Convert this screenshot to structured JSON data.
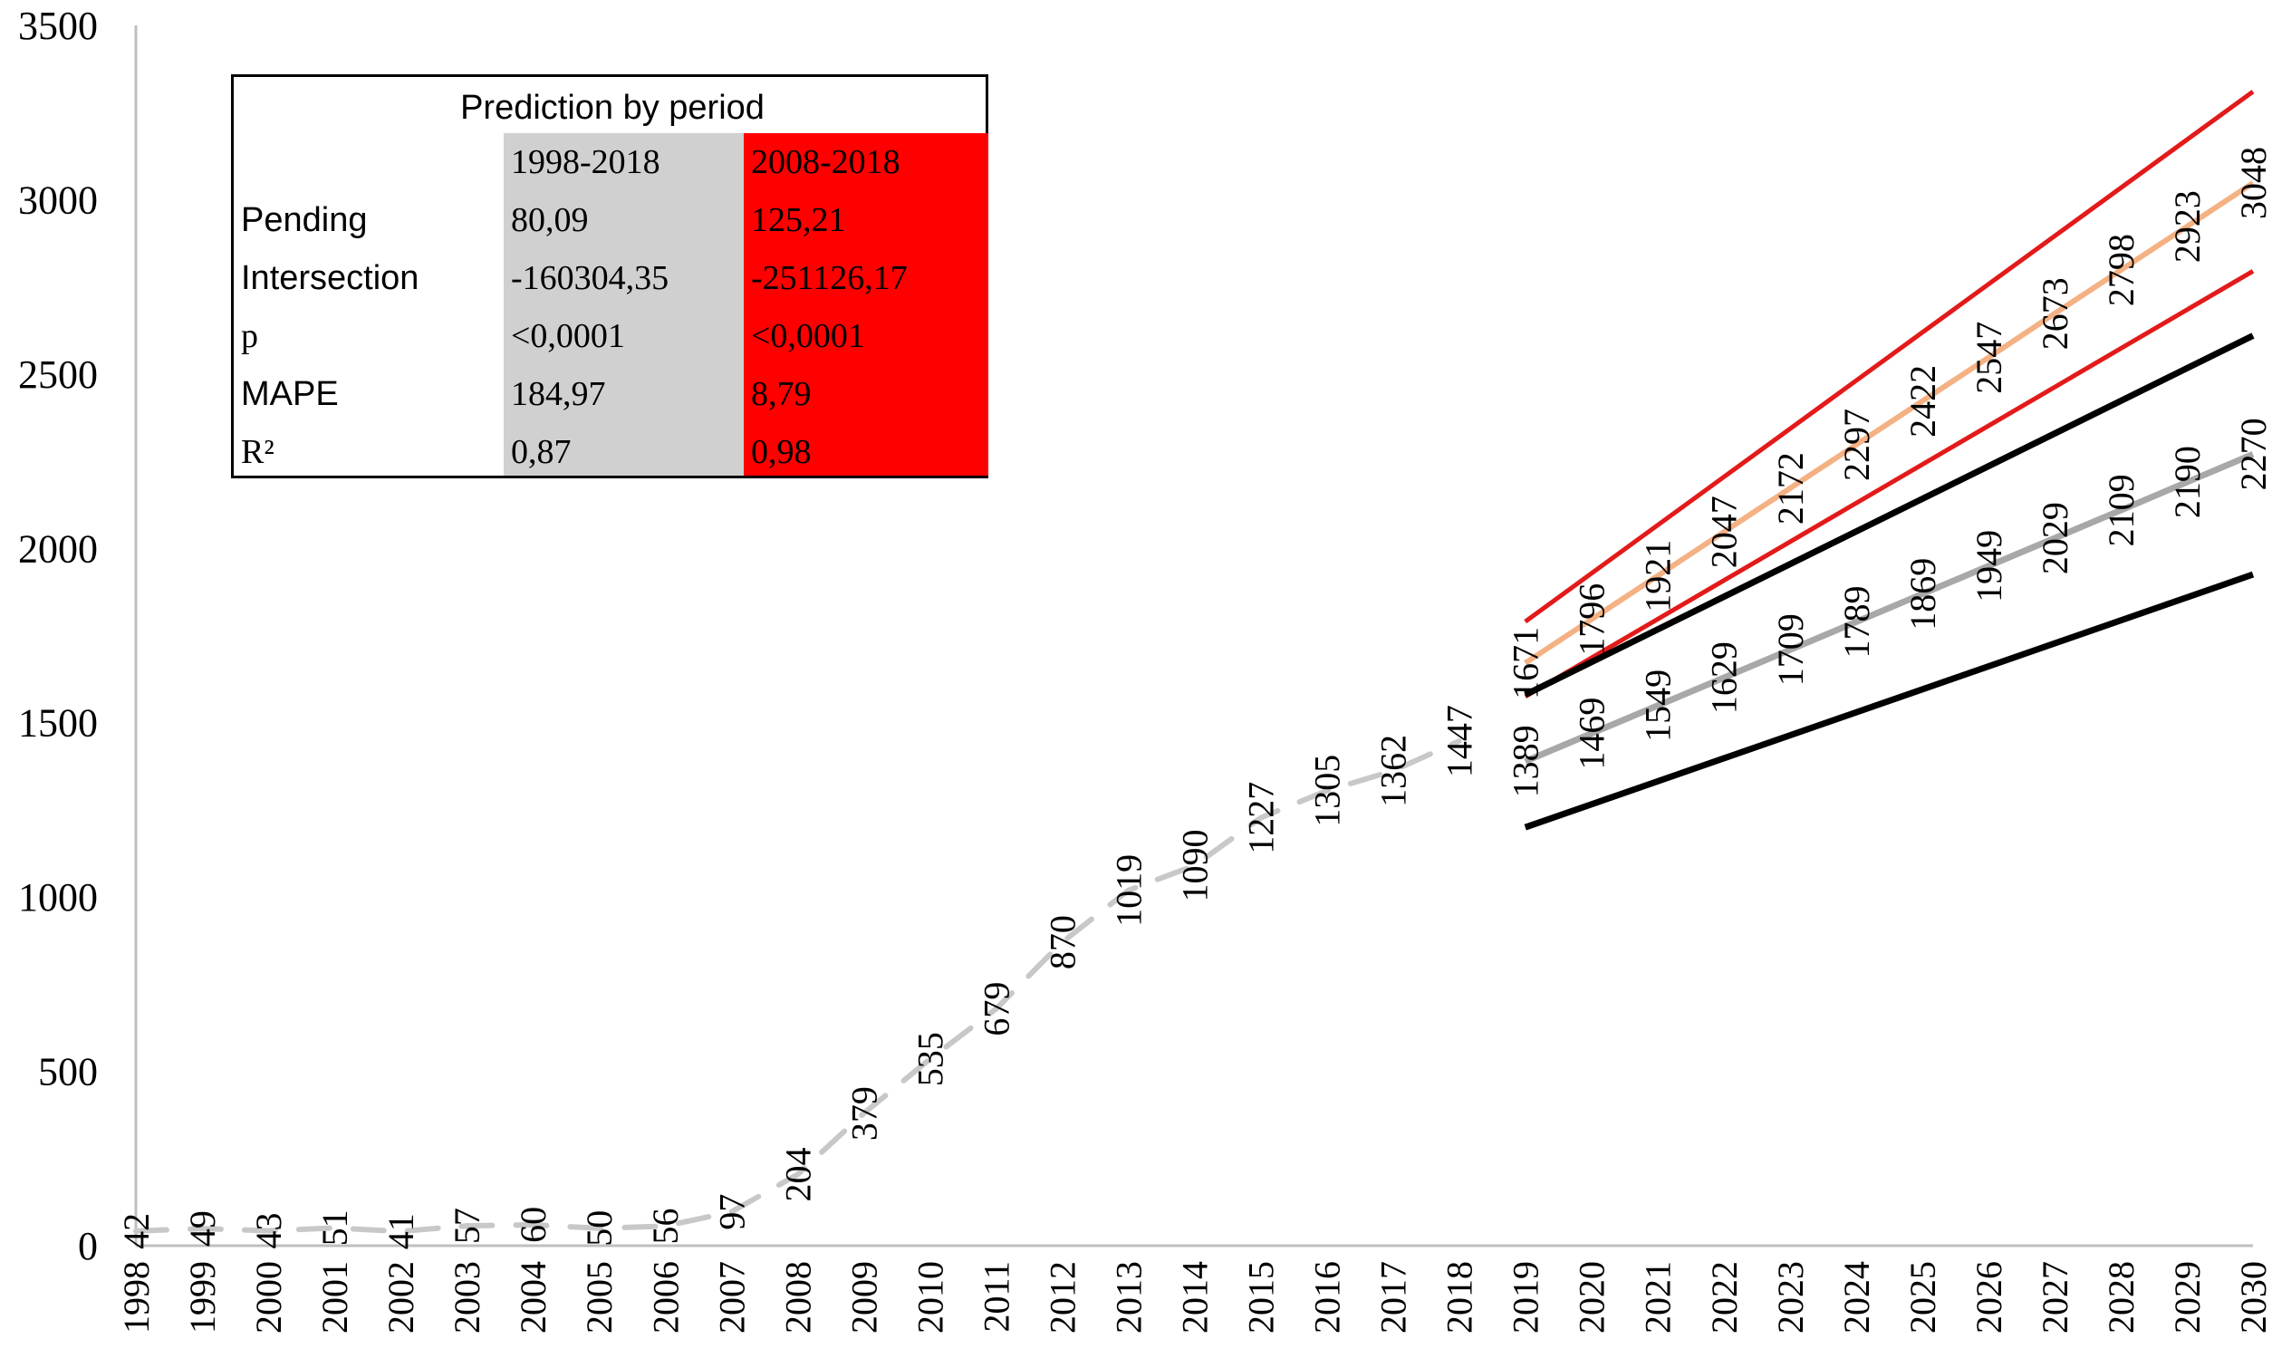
{
  "chart_data": {
    "type": "line",
    "title": "",
    "xlabel": "",
    "ylabel": "",
    "xlim": [
      1998,
      2030
    ],
    "ylim": [
      0,
      3500
    ],
    "y_ticks": [
      "0",
      "500",
      "1000",
      "1500",
      "2000",
      "2500",
      "3000",
      "3500"
    ],
    "x_ticks": [
      "1998",
      "1999",
      "2000",
      "2001",
      "2002",
      "2003",
      "2004",
      "2005",
      "2006",
      "2007",
      "2008",
      "2009",
      "2010",
      "2011",
      "2012",
      "2013",
      "2014",
      "2015",
      "2016",
      "2017",
      "2018",
      "2019",
      "2020",
      "2021",
      "2022",
      "2023",
      "2024",
      "2025",
      "2026",
      "2027",
      "2028",
      "2029",
      "2030"
    ],
    "grid": false,
    "series": [
      {
        "style": "dashed",
        "color": "#c8c8c8",
        "x": [
          1998,
          1999,
          2000,
          2001,
          2002,
          2003,
          2004,
          2005,
          2006,
          2007,
          2008,
          2009,
          2010,
          2011,
          2012,
          2013,
          2014,
          2015,
          2016,
          2017,
          2018
        ],
        "values": [
          42,
          49,
          43,
          51,
          41,
          57,
          60,
          50,
          56,
          97,
          204,
          379,
          535,
          679,
          870,
          1019,
          1090,
          1227,
          1305,
          1362,
          1447
        ],
        "labels": [
          "42",
          "49",
          "43",
          "51",
          "41",
          "57",
          "60",
          "50",
          "56",
          "97",
          "204",
          "379",
          "535",
          "679",
          "870",
          "1019",
          "1090",
          "1227",
          "1305",
          "1362",
          "1447"
        ]
      },
      {
        "style": "solid",
        "color": "#a8a8a8",
        "x": [
          2019,
          2020,
          2021,
          2022,
          2023,
          2024,
          2025,
          2026,
          2027,
          2028,
          2029,
          2030
        ],
        "values": [
          1389,
          1469,
          1549,
          1629,
          1709,
          1789,
          1869,
          1949,
          2029,
          2109,
          2190,
          2270
        ],
        "labels": [
          "1389",
          "1469",
          "1549",
          "1629",
          "1709",
          "1789",
          "1869",
          "1949",
          "2029",
          "2109",
          "2190",
          "2270"
        ]
      },
      {
        "style": "solid",
        "color": "#f4b183",
        "x": [
          2019,
          2020,
          2021,
          2022,
          2023,
          2024,
          2025,
          2026,
          2027,
          2028,
          2029,
          2030
        ],
        "values": [
          1671,
          1796,
          1921,
          2047,
          2172,
          2297,
          2422,
          2547,
          2673,
          2798,
          2923,
          3048
        ],
        "labels": [
          "1671",
          "1796",
          "1921",
          "2047",
          "2172",
          "2297",
          "2422",
          "2547",
          "2673",
          "2798",
          "2923",
          "3048"
        ]
      },
      {
        "style": "solid",
        "color": "#e31a1a",
        "x": [
          2019,
          2030
        ],
        "values": [
          1790,
          3310
        ],
        "labels": []
      },
      {
        "style": "solid",
        "color": "#e31a1a",
        "x": [
          2019,
          2030
        ],
        "values": [
          1575,
          2795
        ],
        "labels": []
      },
      {
        "style": "solid",
        "color": "#000000",
        "x": [
          2019,
          2030
        ],
        "values": [
          1580,
          2610
        ],
        "labels": []
      },
      {
        "style": "solid",
        "color": "#000000",
        "x": [
          2019,
          2030
        ],
        "values": [
          1200,
          1925
        ],
        "labels": []
      }
    ]
  },
  "table": {
    "title": "Prediction by period",
    "col_a_header": "1998-2018",
    "col_b_header": "2008-2018",
    "rows": [
      {
        "label": "Pending",
        "a": "80,09",
        "b": "125,21"
      },
      {
        "label": "Intersection",
        "a": "-160304,35",
        "b": "-251126,17"
      },
      {
        "label": "p",
        "a": "<0,0001",
        "b": "<0,0001"
      },
      {
        "label": "MAPE",
        "a": "184,97",
        "b": "8,79"
      },
      {
        "label": "R²",
        "a": "0,87",
        "b": "0,98"
      }
    ]
  }
}
